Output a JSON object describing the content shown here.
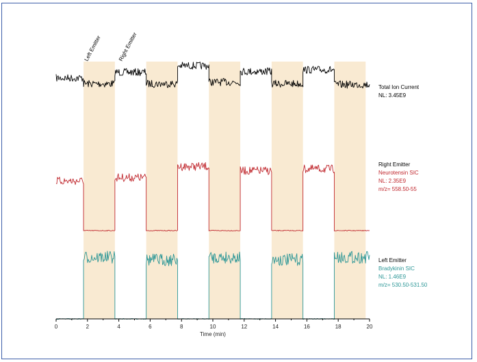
{
  "chart_data": {
    "type": "line",
    "xlabel": "Time (min)",
    "xlim": [
      0,
      20
    ],
    "x_ticks": [
      "0",
      "2",
      "4",
      "6",
      "8",
      "10",
      "12",
      "14",
      "16",
      "18",
      "20"
    ],
    "top_annotations": [
      "Left Emitter",
      "Right Emitter"
    ],
    "left_emitter_windows_min": [
      [
        1.75,
        3.75
      ],
      [
        5.75,
        7.75
      ],
      [
        9.75,
        11.75
      ],
      [
        13.75,
        15.75
      ],
      [
        17.75,
        19.75
      ]
    ],
    "shading_color": "#f9ead2",
    "series": [
      {
        "name": "Total Ion Current",
        "color": "#000000",
        "labels": [
          "Total Ion Current",
          "NL: 3.45E9"
        ],
        "label_colors": [
          "#000000",
          "#000000"
        ],
        "segments": [
          {
            "from": 0,
            "to": 1.75,
            "value": 0.8
          },
          {
            "from": 1.75,
            "to": 3.75,
            "value": 0.73
          },
          {
            "from": 3.75,
            "to": 5.75,
            "value": 0.87
          },
          {
            "from": 5.75,
            "to": 7.75,
            "value": 0.73
          },
          {
            "from": 7.75,
            "to": 9.75,
            "value": 0.95
          },
          {
            "from": 9.75,
            "to": 11.75,
            "value": 0.75
          },
          {
            "from": 11.75,
            "to": 13.75,
            "value": 0.88
          },
          {
            "from": 13.75,
            "to": 15.75,
            "value": 0.73
          },
          {
            "from": 15.75,
            "to": 17.75,
            "value": 0.9
          },
          {
            "from": 17.75,
            "to": 20,
            "value": 0.72
          }
        ]
      },
      {
        "name": "Neurotensin SIC",
        "color": "#c0272d",
        "labels": [
          "Right Emitter",
          "Neurotensin SIC",
          "NL: 2.35E9",
          "m/z= 558.50-55"
        ],
        "label_colors": [
          "#000000",
          "#c0272d",
          "#c0272d",
          "#c0272d"
        ],
        "segments": [
          {
            "from": 0,
            "to": 1.75,
            "value": 0.58
          },
          {
            "from": 1.75,
            "to": 3.75,
            "value": 0.0
          },
          {
            "from": 3.75,
            "to": 5.75,
            "value": 0.62
          },
          {
            "from": 5.75,
            "to": 7.75,
            "value": 0.0
          },
          {
            "from": 7.75,
            "to": 9.75,
            "value": 0.75
          },
          {
            "from": 9.75,
            "to": 11.75,
            "value": 0.0
          },
          {
            "from": 11.75,
            "to": 13.75,
            "value": 0.7
          },
          {
            "from": 13.75,
            "to": 15.75,
            "value": 0.0
          },
          {
            "from": 15.75,
            "to": 17.75,
            "value": 0.72
          },
          {
            "from": 17.75,
            "to": 20,
            "value": 0.0
          }
        ]
      },
      {
        "name": "Bradykinin SIC",
        "color": "#2b9696",
        "labels": [
          "Left Emitter",
          "Bradykinin SIC",
          "NL: 1.46E9",
          "m/z= 530.50-531.50"
        ],
        "label_colors": [
          "#000000",
          "#2b9696",
          "#2b9696",
          "#2b9696"
        ],
        "segments": [
          {
            "from": 0,
            "to": 1.75,
            "value": 0.0
          },
          {
            "from": 1.75,
            "to": 3.75,
            "value": 0.75
          },
          {
            "from": 3.75,
            "to": 5.75,
            "value": 0.0
          },
          {
            "from": 5.75,
            "to": 7.75,
            "value": 0.72
          },
          {
            "from": 7.75,
            "to": 9.75,
            "value": 0.0
          },
          {
            "from": 9.75,
            "to": 11.75,
            "value": 0.75
          },
          {
            "from": 11.75,
            "to": 13.75,
            "value": 0.0
          },
          {
            "from": 13.75,
            "to": 15.75,
            "value": 0.72
          },
          {
            "from": 15.75,
            "to": 17.75,
            "value": 0.0
          },
          {
            "from": 17.75,
            "to": 20,
            "value": 0.75
          }
        ]
      }
    ]
  }
}
